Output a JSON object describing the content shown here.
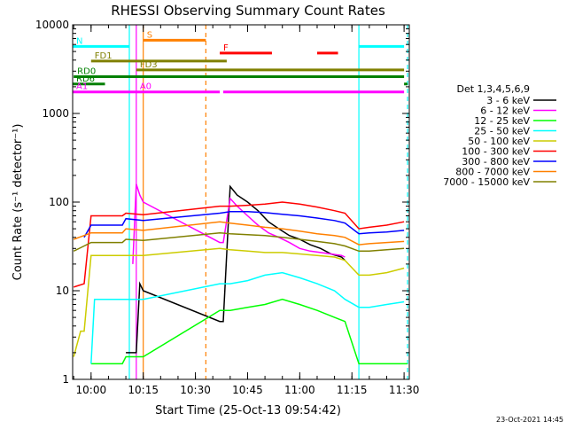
{
  "chart_data": {
    "type": "line",
    "title": "RHESSI Observing Summary Count Rates",
    "xlabel": "Start Time (25-Oct-13 09:54:42)",
    "ylabel": "Count Rate (s⁻¹ detector⁻¹)",
    "y_scale": "log",
    "ylim": [
      1,
      10000
    ],
    "xlim": [
      "09:54:42",
      "11:31:30"
    ],
    "x_ticks": [
      "10:00",
      "10:15",
      "10:30",
      "10:45",
      "11:00",
      "11:15",
      "11:30"
    ],
    "y_ticks": [
      "1",
      "10",
      "100",
      "1000",
      "10000"
    ],
    "legend_position": "right",
    "legend_title": "Det 1,3,4,5,6,9",
    "footer_date": "23-Oct-2021 14:45",
    "series": [
      {
        "name": "3 - 6 keV",
        "color": "#000000",
        "x": [
          "10:10",
          "10:11",
          "10:12",
          "10:13",
          "10:14",
          "10:15",
          "10:37",
          "10:38",
          "10:40",
          "10:42",
          "10:45",
          "10:48",
          "10:51",
          "10:54",
          "10:57",
          "11:00",
          "11:03",
          "11:06",
          "11:09",
          "11:12",
          "11:13"
        ],
        "y": [
          2,
          2,
          2,
          2,
          12,
          10,
          4.5,
          4.5,
          150,
          120,
          100,
          80,
          60,
          50,
          42,
          38,
          33,
          30,
          26,
          24,
          22
        ]
      },
      {
        "name": "6 - 12 keV",
        "color": "#ff00ff",
        "x": [
          "10:12",
          "10:13",
          "10:14",
          "10:15",
          "10:37",
          "10:38",
          "10:40",
          "10:42",
          "10:45",
          "10:48",
          "10:51",
          "10:54",
          "10:57",
          "11:00",
          "11:03",
          "11:06",
          "11:09",
          "11:12",
          "11:13"
        ],
        "y": [
          20,
          160,
          120,
          100,
          35,
          35,
          110,
          90,
          70,
          55,
          45,
          40,
          35,
          30,
          28,
          27,
          26,
          25,
          24
        ]
      },
      {
        "name": "12 - 25 keV",
        "color": "#00ff00",
        "x": [
          "10:00",
          "10:05",
          "10:09",
          "10:10",
          "10:15",
          "10:37",
          "10:40",
          "10:45",
          "10:50",
          "10:55",
          "11:00",
          "11:05",
          "11:10",
          "11:13",
          "11:17",
          "11:31"
        ],
        "y": [
          1.5,
          1.5,
          1.5,
          1.8,
          1.8,
          6,
          6,
          6.5,
          7,
          8,
          7,
          6,
          5,
          4.5,
          1.5,
          1.5
        ]
      },
      {
        "name": "25 - 50 keV",
        "color": "#00ffff",
        "x": [
          "10:00",
          "10:01",
          "10:05",
          "10:09",
          "10:10",
          "10:15",
          "10:37",
          "10:40",
          "10:45",
          "10:50",
          "10:55",
          "11:00",
          "11:05",
          "11:10",
          "11:13",
          "11:17",
          "11:20",
          "11:25",
          "11:30"
        ],
        "y": [
          1.5,
          8,
          8,
          8,
          8,
          8,
          12,
          12,
          13,
          15,
          16,
          14,
          12,
          10,
          8,
          6.5,
          6.5,
          7,
          7.5
        ]
      },
      {
        "name": "50 - 100 keV",
        "color": "#cccc00",
        "x": [
          "09:55",
          "09:57",
          "09:58",
          "10:00",
          "10:05",
          "10:09",
          "10:10",
          "10:15",
          "10:37",
          "10:40",
          "10:45",
          "10:50",
          "10:55",
          "11:00",
          "11:05",
          "11:10",
          "11:13",
          "11:17",
          "11:20",
          "11:25",
          "11:30"
        ],
        "y": [
          1.8,
          3.5,
          3.5,
          25,
          25,
          25,
          25,
          25,
          30,
          29,
          28,
          27,
          27,
          26,
          25,
          24,
          22,
          15,
          15,
          16,
          18
        ]
      },
      {
        "name": "100 - 300 keV",
        "color": "#ff0000",
        "x": [
          "09:55",
          "09:58",
          "10:00",
          "10:05",
          "10:09",
          "10:10",
          "10:15",
          "10:37",
          "10:40",
          "10:45",
          "10:50",
          "10:55",
          "11:00",
          "11:05",
          "11:10",
          "11:13",
          "11:17",
          "11:20",
          "11:25",
          "11:30"
        ],
        "y": [
          11,
          12,
          70,
          70,
          70,
          75,
          72,
          90,
          90,
          92,
          95,
          100,
          95,
          88,
          80,
          75,
          50,
          52,
          55,
          60
        ]
      },
      {
        "name": "300 - 800 keV",
        "color": "#0000ff",
        "x": [
          "09:58",
          "10:00",
          "10:05",
          "10:09",
          "10:10",
          "10:15",
          "10:37",
          "10:40",
          "10:45",
          "10:50",
          "10:55",
          "11:00",
          "11:05",
          "11:10",
          "11:13",
          "11:17",
          "11:20",
          "11:25",
          "11:30"
        ],
        "y": [
          40,
          55,
          55,
          55,
          65,
          62,
          75,
          78,
          78,
          76,
          73,
          70,
          66,
          62,
          58,
          44,
          45,
          46,
          48
        ]
      },
      {
        "name": "800 - 7000 keV",
        "color": "#ff8000",
        "x": [
          "09:55",
          "09:58",
          "10:00",
          "10:05",
          "10:09",
          "10:10",
          "10:15",
          "10:37",
          "10:40",
          "10:45",
          "10:50",
          "10:55",
          "11:00",
          "11:05",
          "11:10",
          "11:13",
          "11:17",
          "11:20",
          "11:25",
          "11:30"
        ],
        "y": [
          38,
          42,
          45,
          45,
          45,
          50,
          48,
          60,
          58,
          55,
          52,
          50,
          47,
          44,
          42,
          40,
          33,
          34,
          35,
          36
        ]
      },
      {
        "name": "7000 - 15000 keV",
        "color": "#808000",
        "x": [
          "09:55",
          "09:58",
          "10:00",
          "10:05",
          "10:09",
          "10:10",
          "10:15",
          "10:37",
          "10:40",
          "10:45",
          "10:50",
          "10:55",
          "11:00",
          "11:05",
          "11:10",
          "11:13",
          "11:17",
          "11:20",
          "11:25",
          "11:30"
        ],
        "y": [
          28,
          32,
          35,
          35,
          35,
          38,
          37,
          45,
          44,
          43,
          42,
          40,
          38,
          36,
          34,
          32,
          28,
          28,
          29,
          30
        ]
      }
    ],
    "flag_bars": [
      {
        "label": "S",
        "color": "#ff8000",
        "y": 6700,
        "segments": [
          [
            "10:15",
            "10:33"
          ]
        ]
      },
      {
        "label": "N",
        "color": "#00ffff",
        "y": 5700,
        "segments": [
          [
            "09:54:42",
            "10:11"
          ],
          [
            "11:17",
            "11:30"
          ]
        ]
      },
      {
        "label": "F",
        "color": "#ff0000",
        "y": 4800,
        "segments": [
          [
            "10:37",
            "10:52"
          ],
          [
            "11:05",
            "11:11"
          ]
        ]
      },
      {
        "label": "FD1",
        "color": "#808000",
        "y": 3900,
        "segments": [
          [
            "10:00",
            "10:39"
          ]
        ]
      },
      {
        "label": "FD3",
        "color": "#808000",
        "y": 3100,
        "segments": [
          [
            "10:13",
            "11:30"
          ]
        ]
      },
      {
        "label": "RD0",
        "color": "#008000",
        "y": 2600,
        "segments": [
          [
            "09:55",
            "11:30"
          ]
        ]
      },
      {
        "label": "RD6",
        "color": "#008000",
        "y": 2150,
        "segments": [
          [
            "09:54:42",
            "10:04"
          ],
          [
            "11:30",
            "11:31"
          ]
        ]
      },
      {
        "label": "A0",
        "color": "#ff00ff",
        "y": 1750,
        "segments": [
          [
            "10:13",
            "10:37"
          ]
        ]
      },
      {
        "label": "A1",
        "color": "#ff00ff",
        "y": 1750,
        "segments": [
          [
            "09:54:42",
            "10:13"
          ],
          [
            "10:38",
            "11:30"
          ]
        ]
      }
    ],
    "vertical_lines": [
      {
        "x": "10:11",
        "color": "#00ffff",
        "style": "solid"
      },
      {
        "x": "10:13",
        "color": "#ff00ff",
        "style": "solid"
      },
      {
        "x": "10:15",
        "color": "#ff8000",
        "style": "solid"
      },
      {
        "x": "10:33",
        "color": "#ff8000",
        "style": "dashed"
      },
      {
        "x": "11:17",
        "color": "#00ffff",
        "style": "solid"
      },
      {
        "x": "11:31",
        "color": "#00ffff",
        "style": "dashed"
      }
    ]
  }
}
